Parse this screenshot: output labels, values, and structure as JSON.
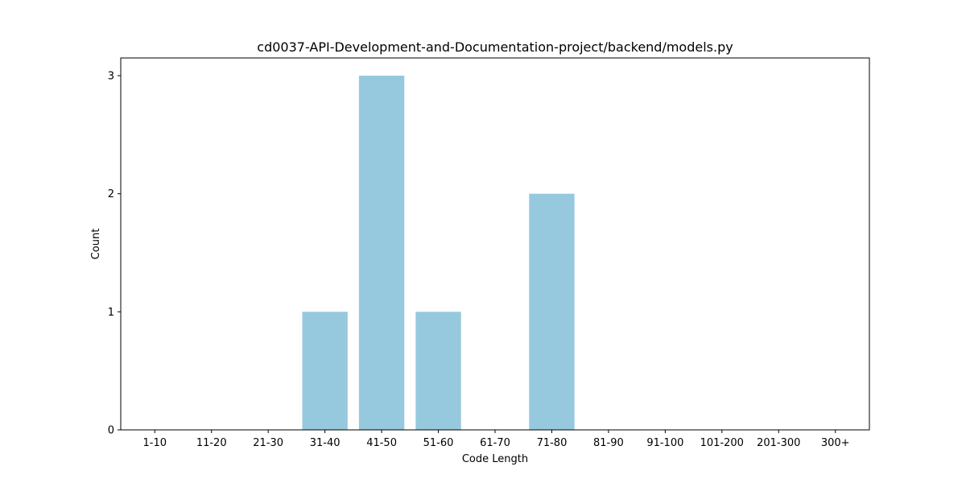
{
  "chart_data": {
    "type": "bar",
    "title": "cd0037-API-Development-and-Documentation-project/backend/models.py",
    "xlabel": "Code Length",
    "ylabel": "Count",
    "categories": [
      "1-10",
      "11-20",
      "21-30",
      "31-40",
      "41-50",
      "51-60",
      "61-70",
      "71-80",
      "81-90",
      "91-100",
      "101-200",
      "201-300",
      "300+"
    ],
    "values": [
      0,
      0,
      0,
      1,
      3,
      1,
      0,
      2,
      0,
      0,
      0,
      0,
      0
    ],
    "yticks": [
      0,
      1,
      2,
      3
    ],
    "ylim": [
      0,
      3.15
    ],
    "grid": false,
    "colors": {
      "bar": "#96c9de",
      "axis": "#000000"
    }
  }
}
